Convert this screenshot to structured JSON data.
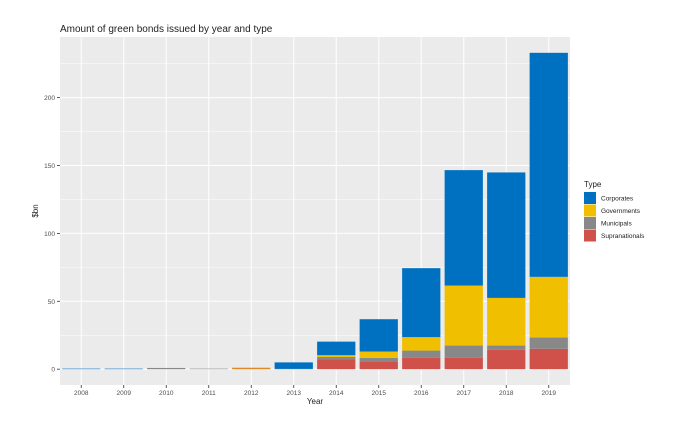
{
  "chart_data": {
    "type": "bar",
    "stacked": true,
    "title": "Amount of green bonds issued by year and type",
    "xlabel": "Year",
    "ylabel": "$bn",
    "ylim": [
      -11.65,
      244.65
    ],
    "yticks": [
      0,
      50,
      100,
      150,
      200
    ],
    "grid": true,
    "legend_position": "right",
    "legend_title": "Type",
    "categories": [
      "2008",
      "2009",
      "2010",
      "2011",
      "2012",
      "2013",
      "2014",
      "2015",
      "2016",
      "2017",
      "2018",
      "2019"
    ],
    "series": [
      {
        "name": "Supranationals",
        "color": "#D0504A",
        "values": [
          0,
          0,
          0,
          0,
          0.5,
          0.2,
          7.4,
          5.6,
          8.3,
          8.3,
          14.2,
          15.0
        ]
      },
      {
        "name": "Municipals",
        "color": "#888888",
        "values": [
          0,
          0,
          0.9,
          0.4,
          0,
          0,
          1.6,
          2.7,
          5.4,
          9.1,
          3.2,
          8.3
        ]
      },
      {
        "name": "Governments",
        "color": "#F0C000",
        "values": [
          0,
          0,
          0,
          0,
          0.7,
          0,
          1.3,
          4.7,
          9.9,
          44.2,
          35.1,
          44.7
        ]
      },
      {
        "name": "Corporates",
        "color": "#0070C0",
        "values": [
          0.4,
          0.4,
          0,
          0,
          0,
          4.8,
          10.0,
          23.8,
          50.8,
          85.0,
          92.4,
          165.0
        ]
      }
    ],
    "legend_order": [
      "Corporates",
      "Governments",
      "Municipals",
      "Supranationals"
    ]
  }
}
